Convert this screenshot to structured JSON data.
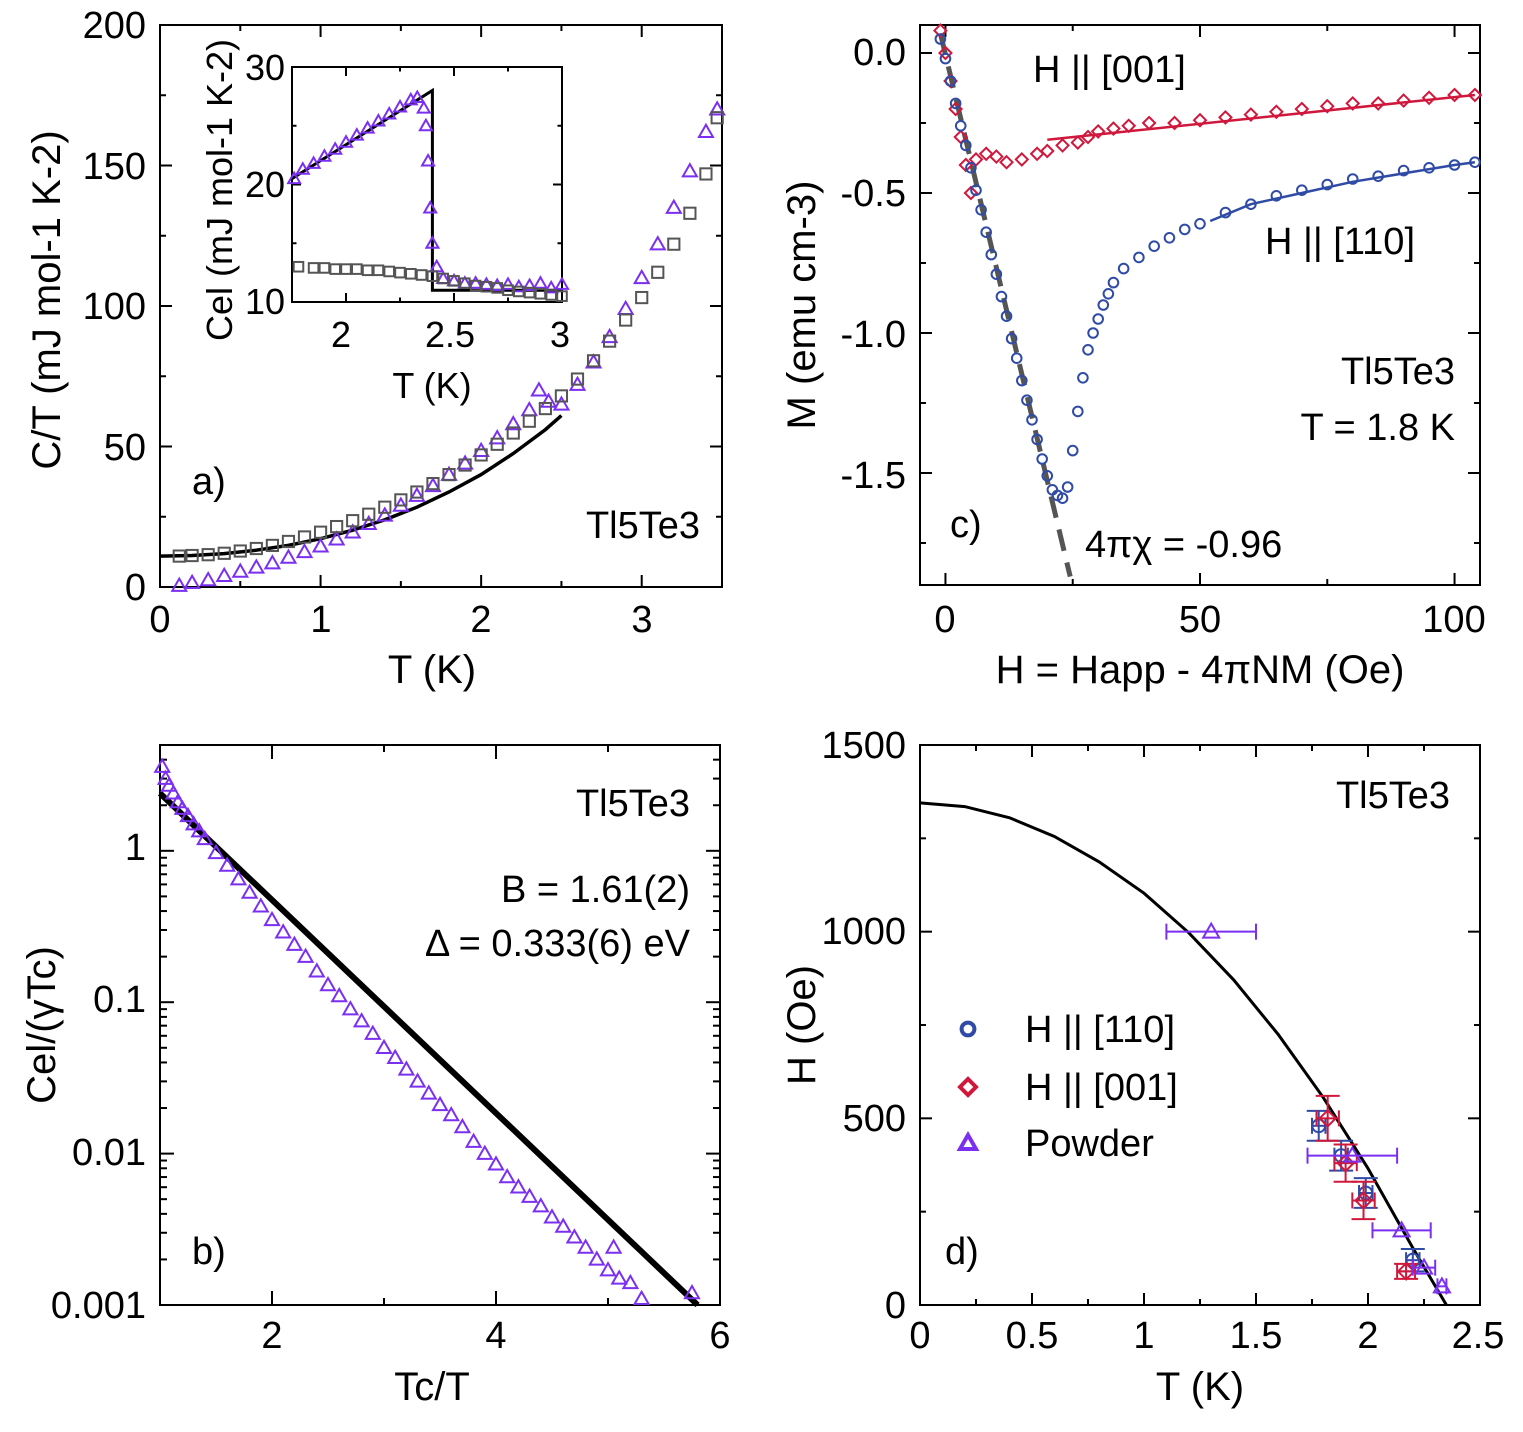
{
  "colors": {
    "purple": "#7b2ff0",
    "gray": "#555555",
    "black": "#000000",
    "blue": "#2f4ba6",
    "red": "#d0183c",
    "dashed": "#555555"
  },
  "chart_data": [
    {
      "id": "a",
      "type": "scatter",
      "panel_label": "a)",
      "annotation": "Tl5Te3",
      "xlabel": "T (K)",
      "ylabel": "C/T (mJ mol-1 K-2)",
      "xlim": [
        0,
        3.5
      ],
      "ylim": [
        0,
        200
      ],
      "xticks": [
        "0",
        "1",
        "2",
        "3"
      ],
      "yticks": [
        "0",
        "50",
        "100",
        "150",
        "200"
      ],
      "series": [
        {
          "marker": "triangle",
          "color": "purple",
          "x": [
            0.12,
            0.2,
            0.3,
            0.4,
            0.5,
            0.6,
            0.7,
            0.8,
            0.9,
            1.0,
            1.1,
            1.2,
            1.3,
            1.4,
            1.5,
            1.6,
            1.7,
            1.8,
            1.9,
            2.0,
            2.1,
            2.2,
            2.3,
            2.36,
            2.42,
            2.5,
            2.6,
            2.7,
            2.8,
            2.9,
            3.0,
            3.1,
            3.2,
            3.3,
            3.4,
            3.47
          ],
          "y": [
            0.5,
            1.5,
            2.5,
            4,
            5.5,
            7,
            8.5,
            10.5,
            12.5,
            14.5,
            17,
            19.5,
            22.5,
            25.5,
            29,
            32.5,
            36,
            40,
            44,
            48.5,
            53,
            58,
            63,
            70,
            66,
            65,
            72,
            80,
            89,
            99,
            110,
            122,
            135,
            148,
            162,
            170
          ]
        },
        {
          "marker": "square",
          "color": "gray",
          "x": [
            0.12,
            0.2,
            0.3,
            0.4,
            0.5,
            0.6,
            0.7,
            0.8,
            0.9,
            1.0,
            1.1,
            1.2,
            1.3,
            1.4,
            1.5,
            1.6,
            1.7,
            1.8,
            1.9,
            2.0,
            2.1,
            2.2,
            2.3,
            2.4,
            2.5,
            2.6,
            2.7,
            2.8,
            2.9,
            3.0,
            3.1,
            3.2,
            3.3,
            3.4,
            3.47
          ],
          "y": [
            11,
            11.2,
            11.5,
            12,
            12.8,
            13.7,
            14.8,
            16.2,
            17.8,
            19.5,
            21.5,
            23.6,
            25.9,
            28.4,
            31,
            33.8,
            36.8,
            40,
            43.4,
            47,
            50.8,
            54.8,
            59,
            63.5,
            68,
            74,
            80.5,
            87.5,
            95,
            103,
            112,
            122,
            133,
            147,
            167
          ]
        }
      ],
      "fit": {
        "color": "black",
        "x": [
          0,
          0.2,
          0.4,
          0.6,
          0.8,
          1.0,
          1.2,
          1.4,
          1.6,
          1.8,
          2.0,
          2.2,
          2.4,
          2.5
        ],
        "y": [
          11,
          11.2,
          11.9,
          13.1,
          14.8,
          17.2,
          20.2,
          23.9,
          28.4,
          33.8,
          40,
          47.5,
          56,
          61
        ]
      },
      "inset": {
        "xlabel": "T (K)",
        "ylabel": "Cel (mJ mol-1 K-2)",
        "xlim": [
          1.75,
          3.0
        ],
        "ylim": [
          10,
          30
        ],
        "xticks": [
          "2",
          "2.5",
          "3"
        ],
        "yticks": [
          "10",
          "20",
          "30"
        ],
        "series": [
          {
            "marker": "triangle",
            "color": "purple",
            "x": [
              1.76,
              1.8,
              1.85,
              1.9,
              1.95,
              2.0,
              2.05,
              2.1,
              2.15,
              2.2,
              2.25,
              2.3,
              2.33,
              2.36,
              2.37,
              2.38,
              2.39,
              2.4,
              2.42,
              2.45,
              2.5,
              2.55,
              2.6,
              2.65,
              2.7,
              2.75,
              2.8,
              2.85,
              2.9,
              2.95,
              3.0
            ],
            "y": [
              20.5,
              21.3,
              21.8,
              22.4,
              23,
              23.6,
              24.2,
              24.8,
              25.4,
              26,
              26.6,
              27.2,
              27.4,
              26.5,
              25,
              22,
              18,
              15,
              13,
              12,
              11.8,
              11.6,
              11.6,
              11.5,
              11.4,
              11.5,
              11.3,
              11.4,
              11.6,
              11.2,
              11.5
            ]
          },
          {
            "marker": "square",
            "color": "gray",
            "x": [
              1.78,
              1.85,
              1.9,
              1.95,
              2.0,
              2.05,
              2.1,
              2.15,
              2.2,
              2.25,
              2.3,
              2.35,
              2.4,
              2.45,
              2.5,
              2.55,
              2.6,
              2.65,
              2.7,
              2.75,
              2.8,
              2.85,
              2.9,
              2.95,
              3.0
            ],
            "y": [
              13,
              12.9,
              12.9,
              12.8,
              12.8,
              12.8,
              12.7,
              12.7,
              12.6,
              12.5,
              12.4,
              12.3,
              12.2,
              12,
              11.8,
              11.6,
              11.4,
              11.3,
              11.2,
              11,
              10.9,
              10.8,
              10.7,
              10.6,
              10.5
            ]
          }
        ],
        "fit": {
          "color": "black",
          "x": [
            1.75,
            2.4,
            2.4,
            3.0
          ],
          "y": [
            20.5,
            28,
            11,
            11
          ]
        }
      }
    },
    {
      "id": "b",
      "type": "scatter",
      "panel_label": "b)",
      "annotation": "Tl5Te3",
      "text_lines": [
        "B = 1.61(2)",
        "Δ = 0.333(6) eV"
      ],
      "xlabel": "Tc/T",
      "ylabel": "Cel/(γTc)",
      "yscale": "log",
      "xlim": [
        1,
        6
      ],
      "ylim": [
        0.001,
        5
      ],
      "xticks": [
        "2",
        "4",
        "6"
      ],
      "yticks": [
        "0.001",
        "0.01",
        "0.1",
        "1"
      ],
      "series": [
        {
          "marker": "triangle",
          "color": "purple",
          "x": [
            1.02,
            1.05,
            1.08,
            1.12,
            1.16,
            1.2,
            1.25,
            1.3,
            1.35,
            1.4,
            1.5,
            1.6,
            1.7,
            1.8,
            1.9,
            2.0,
            2.1,
            2.2,
            2.3,
            2.4,
            2.5,
            2.6,
            2.7,
            2.8,
            2.9,
            3.0,
            3.1,
            3.2,
            3.3,
            3.4,
            3.5,
            3.6,
            3.7,
            3.8,
            3.9,
            4.0,
            4.1,
            4.2,
            4.3,
            4.4,
            4.5,
            4.6,
            4.7,
            4.8,
            4.9,
            5.0,
            5.05,
            5.1,
            5.2,
            5.3,
            5.75
          ],
          "y": [
            3.6,
            3.0,
            2.7,
            2.4,
            2.1,
            1.9,
            1.7,
            1.5,
            1.35,
            1.2,
            0.97,
            0.8,
            0.65,
            0.53,
            0.43,
            0.35,
            0.29,
            0.24,
            0.2,
            0.16,
            0.13,
            0.11,
            0.09,
            0.075,
            0.062,
            0.05,
            0.043,
            0.036,
            0.03,
            0.025,
            0.021,
            0.018,
            0.015,
            0.012,
            0.01,
            0.0085,
            0.007,
            0.006,
            0.0052,
            0.0045,
            0.0038,
            0.0033,
            0.0028,
            0.0024,
            0.002,
            0.0017,
            0.0024,
            0.0015,
            0.0014,
            0.0011,
            0.0012
          ]
        }
      ],
      "fit": {
        "color": "black",
        "x": [
          1.0,
          5.8
        ],
        "y": [
          2.4,
          0.001
        ]
      }
    },
    {
      "id": "c",
      "type": "scatter",
      "panel_label": "c)",
      "annotation_lines": [
        "Tl5Te3",
        "T = 1.8 K"
      ],
      "text_lines": [
        "4πχ = -0.96"
      ],
      "xlabel": "H = Happ - 4πNM (Oe)",
      "ylabel": "M (emu cm-3)",
      "xlim": [
        -5,
        105
      ],
      "ylim": [
        -1.9,
        0.1
      ],
      "xticks": [
        "0",
        "50",
        "100"
      ],
      "yticks": [
        "-1.5",
        "-1.0",
        "-0.5",
        "0.0"
      ],
      "series": [
        {
          "name": "H || [001]",
          "marker": "diamond",
          "color": "red",
          "x": [
            -1,
            0,
            1,
            2,
            3,
            4,
            5,
            6,
            8,
            10,
            12,
            15,
            18,
            20,
            23,
            26,
            28,
            30,
            33,
            36,
            40,
            45,
            50,
            55,
            60,
            65,
            70,
            75,
            80,
            85,
            90,
            95,
            100,
            104
          ],
          "y": [
            0.08,
            0.0,
            -0.1,
            -0.2,
            -0.3,
            -0.4,
            -0.5,
            -0.38,
            -0.36,
            -0.37,
            -0.39,
            -0.38,
            -0.36,
            -0.35,
            -0.33,
            -0.32,
            -0.3,
            -0.28,
            -0.27,
            -0.26,
            -0.25,
            -0.25,
            -0.24,
            -0.23,
            -0.22,
            -0.21,
            -0.2,
            -0.19,
            -0.18,
            -0.18,
            -0.17,
            -0.16,
            -0.15,
            -0.15
          ]
        },
        {
          "name": "H || [110]",
          "marker": "circle",
          "color": "blue",
          "x": [
            -1,
            0,
            1,
            2,
            3,
            4,
            5,
            6,
            7,
            8,
            9,
            10,
            11,
            12,
            13,
            14,
            15,
            16,
            17,
            18,
            19,
            20,
            21,
            22,
            23,
            24,
            25,
            26,
            27,
            28,
            29,
            30,
            31,
            32,
            33,
            35,
            38,
            41,
            44,
            47,
            50,
            55,
            60,
            65,
            70,
            75,
            80,
            85,
            90,
            95,
            100,
            104
          ],
          "y": [
            0.05,
            -0.02,
            -0.1,
            -0.18,
            -0.26,
            -0.33,
            -0.41,
            -0.49,
            -0.56,
            -0.64,
            -0.72,
            -0.79,
            -0.87,
            -0.94,
            -1.02,
            -1.09,
            -1.17,
            -1.24,
            -1.31,
            -1.38,
            -1.45,
            -1.51,
            -1.56,
            -1.58,
            -1.59,
            -1.55,
            -1.42,
            -1.28,
            -1.16,
            -1.06,
            -1.0,
            -0.95,
            -0.9,
            -0.86,
            -0.82,
            -0.77,
            -0.73,
            -0.69,
            -0.66,
            -0.63,
            -0.61,
            -0.57,
            -0.54,
            -0.51,
            -0.49,
            -0.47,
            -0.45,
            -0.44,
            -0.42,
            -0.41,
            -0.4,
            -0.39
          ]
        }
      ],
      "fits": [
        {
          "color": "red",
          "x": [
            20,
            104
          ],
          "y": [
            -0.31,
            -0.15
          ]
        },
        {
          "color": "blue",
          "x": [
            52,
            60,
            70,
            80,
            90,
            100,
            104
          ],
          "y": [
            -0.6,
            -0.54,
            -0.5,
            -0.46,
            -0.43,
            -0.4,
            -0.39
          ]
        }
      ],
      "dashed_line": {
        "color": "dashed",
        "x": [
          -1,
          24.5
        ],
        "y": [
          0.07,
          -1.87
        ]
      }
    },
    {
      "id": "d",
      "type": "scatter",
      "panel_label": "d)",
      "annotation": "Tl5Te3",
      "xlabel": "T (K)",
      "ylabel": "H (Oe)",
      "xlim": [
        0,
        2.5
      ],
      "ylim": [
        0,
        1500
      ],
      "xticks": [
        "0",
        "0.5",
        "1",
        "1.5",
        "2",
        "2.5"
      ],
      "yticks": [
        "0",
        "500",
        "1000",
        "1500"
      ],
      "legend": [
        "H || [110]",
        "H || [001]",
        "Powder"
      ],
      "legend_placement": "left-middle",
      "series": [
        {
          "name": "H || [110]",
          "marker": "circle",
          "color": "blue",
          "x": [
            1.78,
            1.88,
            1.99,
            2.2
          ],
          "y": [
            480,
            400,
            300,
            120
          ],
          "xerr": [
            0.03,
            0.03,
            0.03,
            0.03
          ],
          "yerr": [
            40,
            40,
            40,
            30
          ]
        },
        {
          "name": "H || [001]",
          "marker": "diamond",
          "color": "red",
          "x": [
            1.82,
            1.9,
            1.98,
            2.17
          ],
          "y": [
            500,
            380,
            280,
            90
          ],
          "xerr": [
            0.05,
            0.05,
            0.05,
            0.04
          ],
          "yerr": [
            60,
            50,
            50,
            20
          ]
        },
        {
          "name": "Powder",
          "marker": "triangle",
          "color": "purple",
          "x": [
            1.3,
            1.93,
            2.15,
            2.25,
            2.33
          ],
          "y": [
            1000,
            400,
            200,
            100,
            50
          ],
          "xerr": [
            0.2,
            0.2,
            0.13,
            0.05,
            0.02
          ],
          "yerr": [
            0,
            0,
            0,
            0,
            0
          ]
        }
      ],
      "fit": {
        "color": "black",
        "x": [
          0,
          0.2,
          0.4,
          0.6,
          0.8,
          1.0,
          1.2,
          1.4,
          1.6,
          1.8,
          2.0,
          2.2,
          2.35
        ],
        "y": [
          1345,
          1335,
          1305,
          1255,
          1187,
          1103,
          997,
          871,
          724,
          556,
          366,
          153,
          0
        ]
      }
    }
  ]
}
